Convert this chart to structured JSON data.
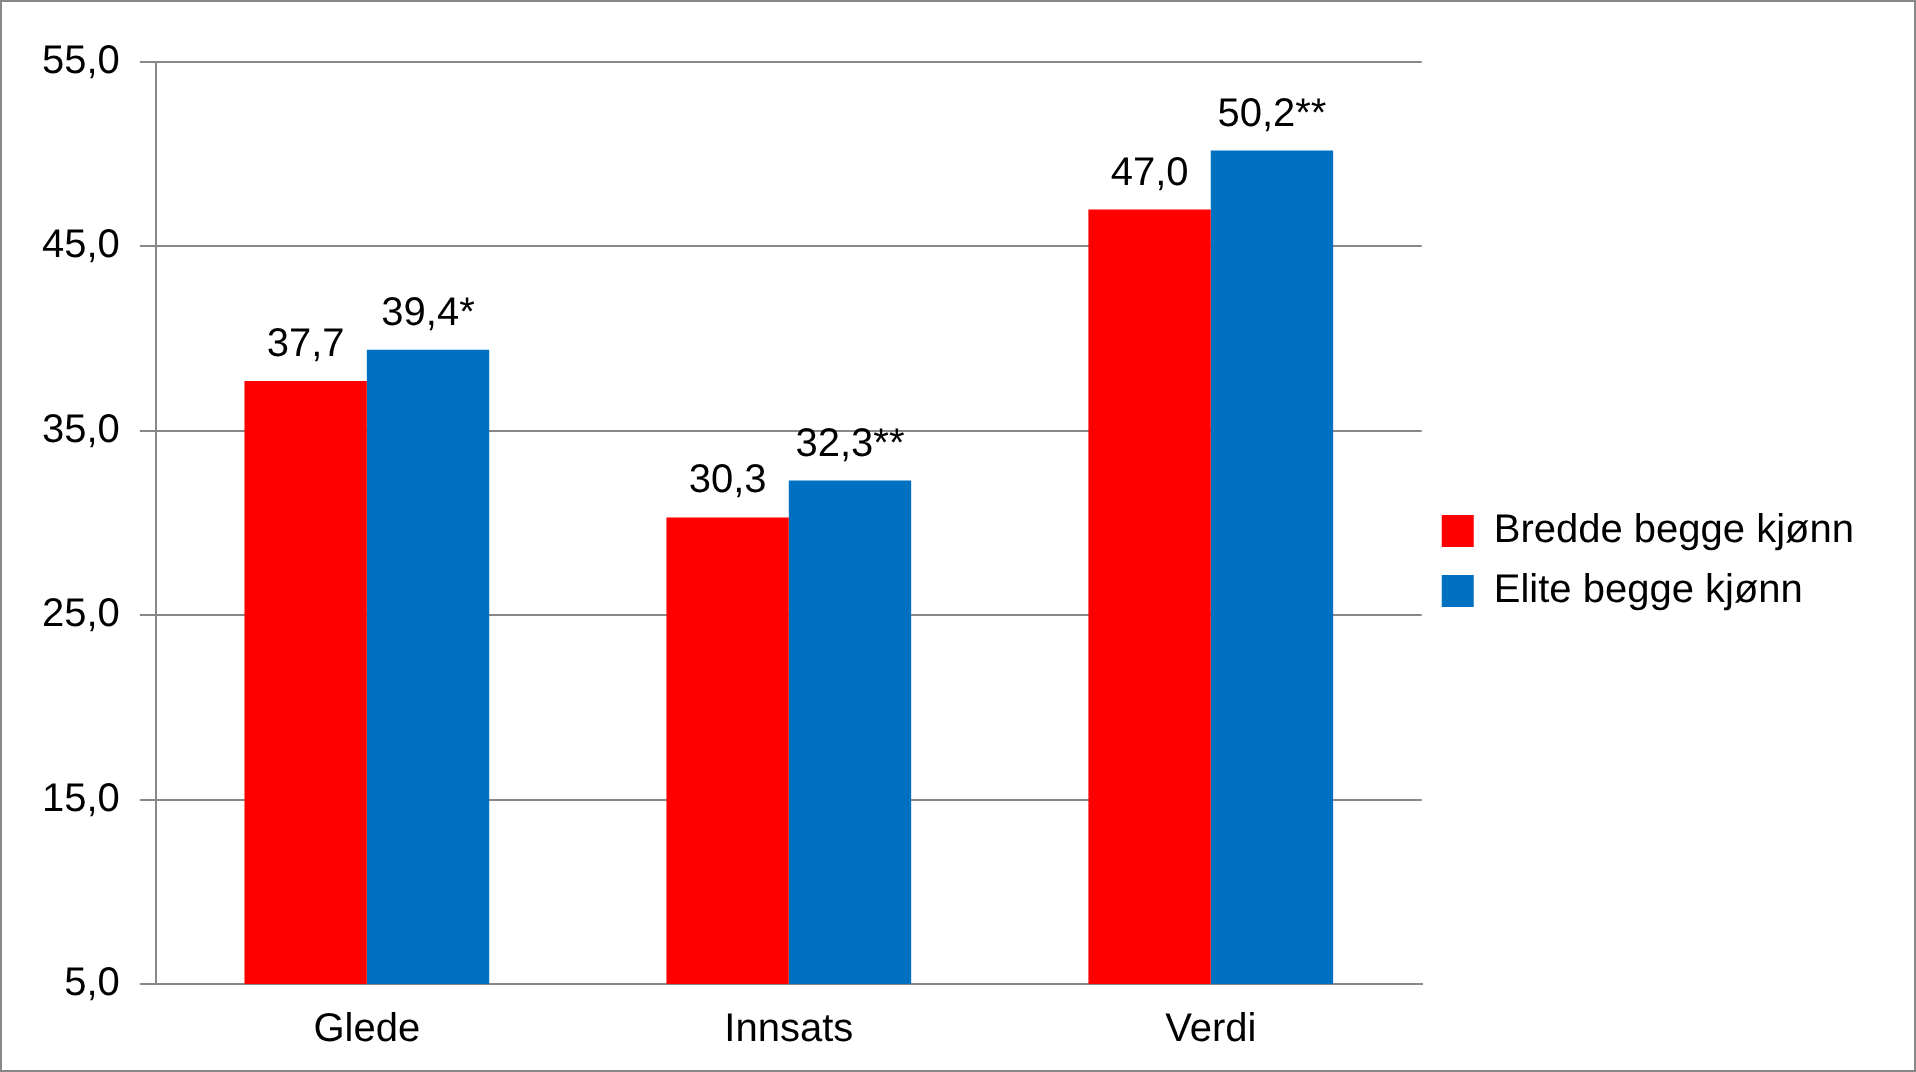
{
  "chart_data": {
    "type": "bar",
    "categories": [
      "Glede",
      "Innsats",
      "Verdi"
    ],
    "series": [
      {
        "name": "Bredde begge kjønn",
        "color": "#ff0000",
        "values": [
          37.7,
          30.3,
          47.0
        ],
        "value_labels": [
          "37,7",
          "30,3",
          "47,0"
        ]
      },
      {
        "name": "Elite begge kjønn",
        "color": "#0070c0",
        "values": [
          39.4,
          32.3,
          50.2
        ],
        "value_labels": [
          "39,4*",
          "32,3**",
          "50,2**"
        ]
      }
    ],
    "ylim": [
      5,
      55
    ],
    "yticks": [
      {
        "value": 5,
        "label": "5,0"
      },
      {
        "value": 15,
        "label": "15,0"
      },
      {
        "value": 25,
        "label": "25,0"
      },
      {
        "value": 35,
        "label": "35,0"
      },
      {
        "value": 45,
        "label": "45,0"
      },
      {
        "value": 55,
        "label": "55,0"
      }
    ],
    "grid": "y",
    "legend": "right"
  }
}
